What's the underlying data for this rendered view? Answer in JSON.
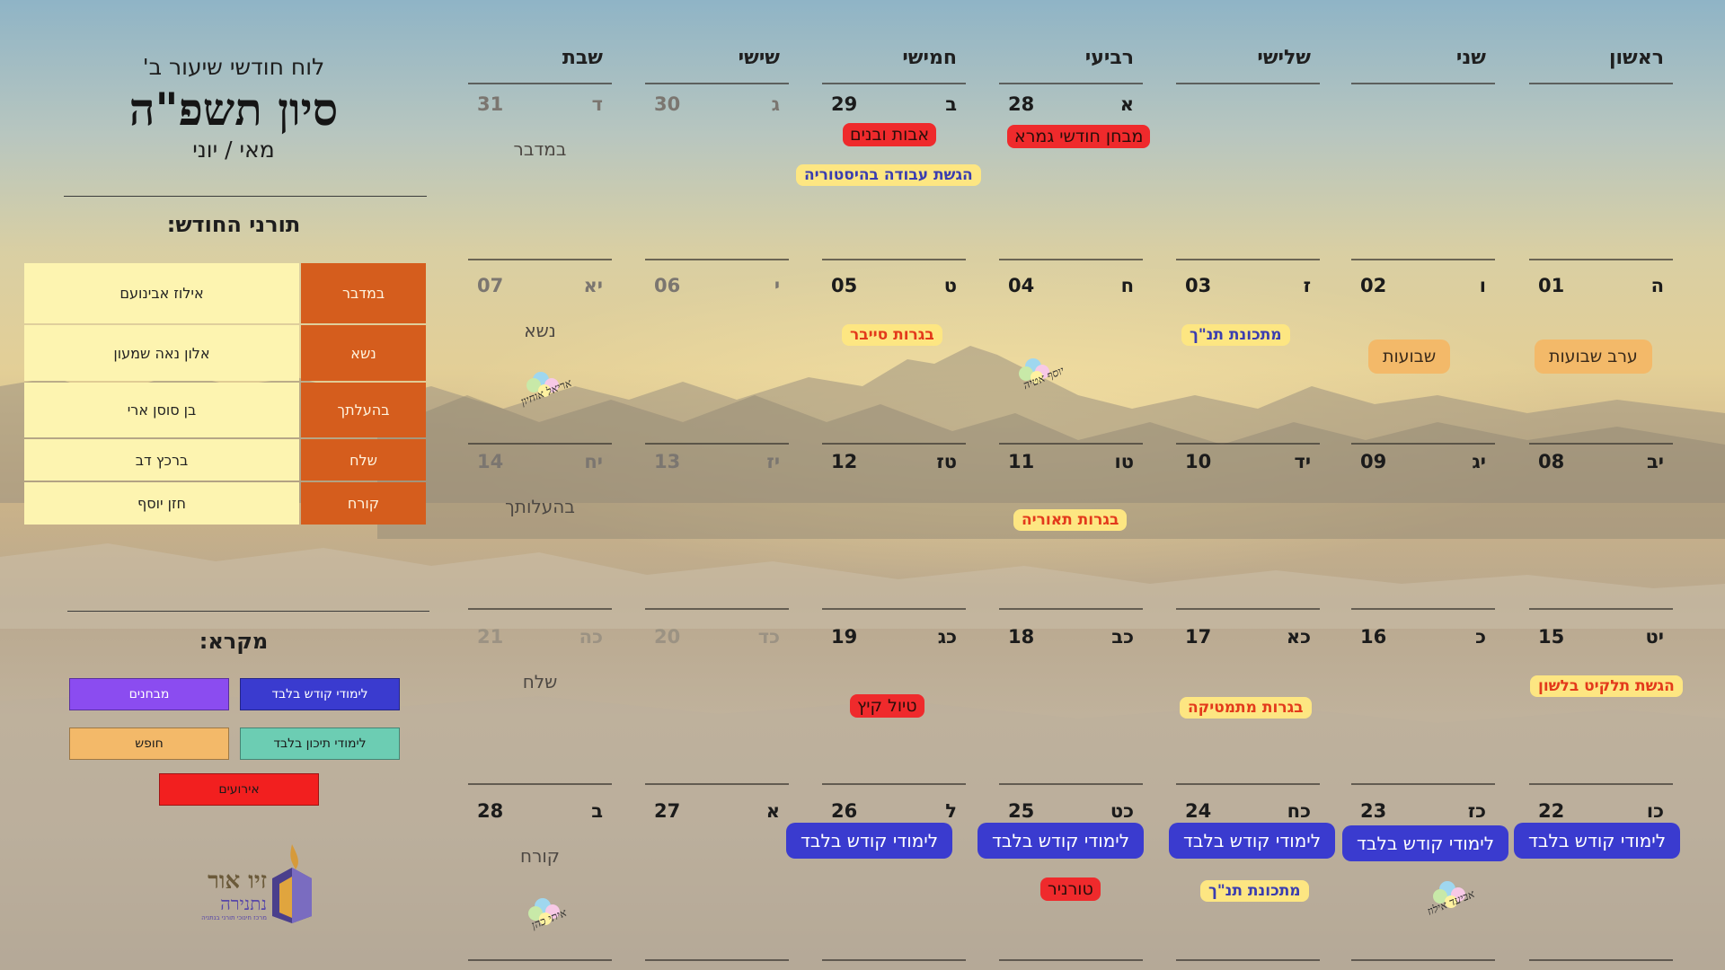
{
  "header": {
    "subtitle": "לוח חודשי שיעור ב'",
    "title": "סיון תשפ\"ה",
    "months": "מאי / יוני"
  },
  "duty": {
    "heading": "תורני החודש:",
    "rows": [
      {
        "portion": "במדבר",
        "name": "אילוז אבינועם"
      },
      {
        "portion": "נשא",
        "name": "אלון נאה שמעון"
      },
      {
        "portion": "בהעלתך",
        "name": "בן סוסן ארי"
      },
      {
        "portion": "שלח",
        "name": "ברכץ דב"
      },
      {
        "portion": "קורח",
        "name": "חזן יוסף"
      }
    ]
  },
  "legend": {
    "heading": "מקרא:",
    "items": [
      {
        "label": "לימודי קודש בלבד",
        "color": "#3a3bcf",
        "text_color": "#ffffff"
      },
      {
        "label": "מבחנים",
        "color": "#8b4cf0",
        "text_color": "#ffffff"
      },
      {
        "label": "לימודי תיכון בלבד",
        "color": "#6ccdb3",
        "text_color": "#1a1a1a"
      },
      {
        "label": "חופש",
        "color": "#f3b969",
        "text_color": "#1a1a1a"
      },
      {
        "label": "אירועים",
        "color": "#f21f1f",
        "text_color": "#1a1a1a"
      }
    ]
  },
  "logo": {
    "main": "זיו אור",
    "sub": "נתנירה",
    "tiny": "מרכז חינוכי תורני בנתניה"
  },
  "calendar": {
    "days": [
      "ראשון",
      "שני",
      "שלישי",
      "רביעי",
      "חמישי",
      "שישי",
      "שבת"
    ],
    "weeks": [
      {
        "cells": [
          {
            "num": "",
            "heb": ""
          },
          {
            "num": "",
            "heb": ""
          },
          {
            "num": "",
            "heb": ""
          },
          {
            "num": "28",
            "heb": "א"
          },
          {
            "num": "29",
            "heb": "ב"
          },
          {
            "num": "30",
            "heb": "ג",
            "dim": true
          },
          {
            "num": "31",
            "heb": "ד",
            "dim": true,
            "parasha": "במדבר"
          }
        ]
      },
      {
        "cells": [
          {
            "num": "01",
            "heb": "ה"
          },
          {
            "num": "02",
            "heb": "ו"
          },
          {
            "num": "03",
            "heb": "ז"
          },
          {
            "num": "04",
            "heb": "ח"
          },
          {
            "num": "05",
            "heb": "ט"
          },
          {
            "num": "06",
            "heb": "י",
            "dim": true
          },
          {
            "num": "07",
            "heb": "יא",
            "dim": true,
            "parasha": "נשא"
          }
        ]
      },
      {
        "cells": [
          {
            "num": "08",
            "heb": "יב"
          },
          {
            "num": "09",
            "heb": "יג"
          },
          {
            "num": "10",
            "heb": "יד"
          },
          {
            "num": "11",
            "heb": "טו"
          },
          {
            "num": "12",
            "heb": "טז"
          },
          {
            "num": "13",
            "heb": "יז",
            "dim": true
          },
          {
            "num": "14",
            "heb": "יח",
            "dim": true,
            "parasha": "בהעלותך"
          }
        ]
      },
      {
        "cells": [
          {
            "num": "15",
            "heb": "יט"
          },
          {
            "num": "16",
            "heb": "כ"
          },
          {
            "num": "17",
            "heb": "כא"
          },
          {
            "num": "18",
            "heb": "כב"
          },
          {
            "num": "19",
            "heb": "כג"
          },
          {
            "num": "20",
            "heb": "כד",
            "faint": true
          },
          {
            "num": "21",
            "heb": "כה",
            "faint": true,
            "parasha": "שלח"
          }
        ]
      },
      {
        "cells": [
          {
            "num": "22",
            "heb": "כו"
          },
          {
            "num": "23",
            "heb": "כז"
          },
          {
            "num": "24",
            "heb": "כח"
          },
          {
            "num": "25",
            "heb": "כט"
          },
          {
            "num": "26",
            "heb": "ל"
          },
          {
            "num": "27",
            "heb": "א"
          },
          {
            "num": "28",
            "heb": "ב",
            "parasha": "קורח"
          }
        ]
      }
    ],
    "events": [
      {
        "text": "מבחן חודשי גמרא",
        "style": "red"
      },
      {
        "text": "אבות ובנים",
        "style": "red"
      },
      {
        "text": "הגשת עבודה בהיסטוריה",
        "style": "yellow-blue"
      },
      {
        "text": "ערב שבועות",
        "style": "orange"
      },
      {
        "text": "שבועות",
        "style": "orange"
      },
      {
        "text": "מתכונת תנ\"ך",
        "style": "yellow-blue"
      },
      {
        "text": "בגרות סייבר",
        "style": "yellow"
      },
      {
        "text": "בגרות תאוריה",
        "style": "yellow"
      },
      {
        "text": "הגשת תלקיט בלשון",
        "style": "yellow"
      },
      {
        "text": "בגרות מתמטיקה",
        "style": "yellow"
      },
      {
        "text": "טיול קיץ",
        "style": "red"
      },
      {
        "text": "לימודי קודש בלבד",
        "style": "blue"
      },
      {
        "text": "לימודי קודש בלבד",
        "style": "blue"
      },
      {
        "text": "לימודי קודש בלבד",
        "style": "blue"
      },
      {
        "text": "לימודי קודש בלבד",
        "style": "blue"
      },
      {
        "text": "לימודי קודש בלבד",
        "style": "blue"
      },
      {
        "text": "מתכונת תנ\"ך",
        "style": "yellow-blue"
      },
      {
        "text": "טורניר",
        "style": "red"
      }
    ],
    "birthdays": [
      {
        "text": "יוסף אטיה"
      },
      {
        "text": "אריאל אוחיון"
      },
      {
        "text": "אביעד אילוז"
      },
      {
        "text": "איתי כהן"
      }
    ]
  }
}
